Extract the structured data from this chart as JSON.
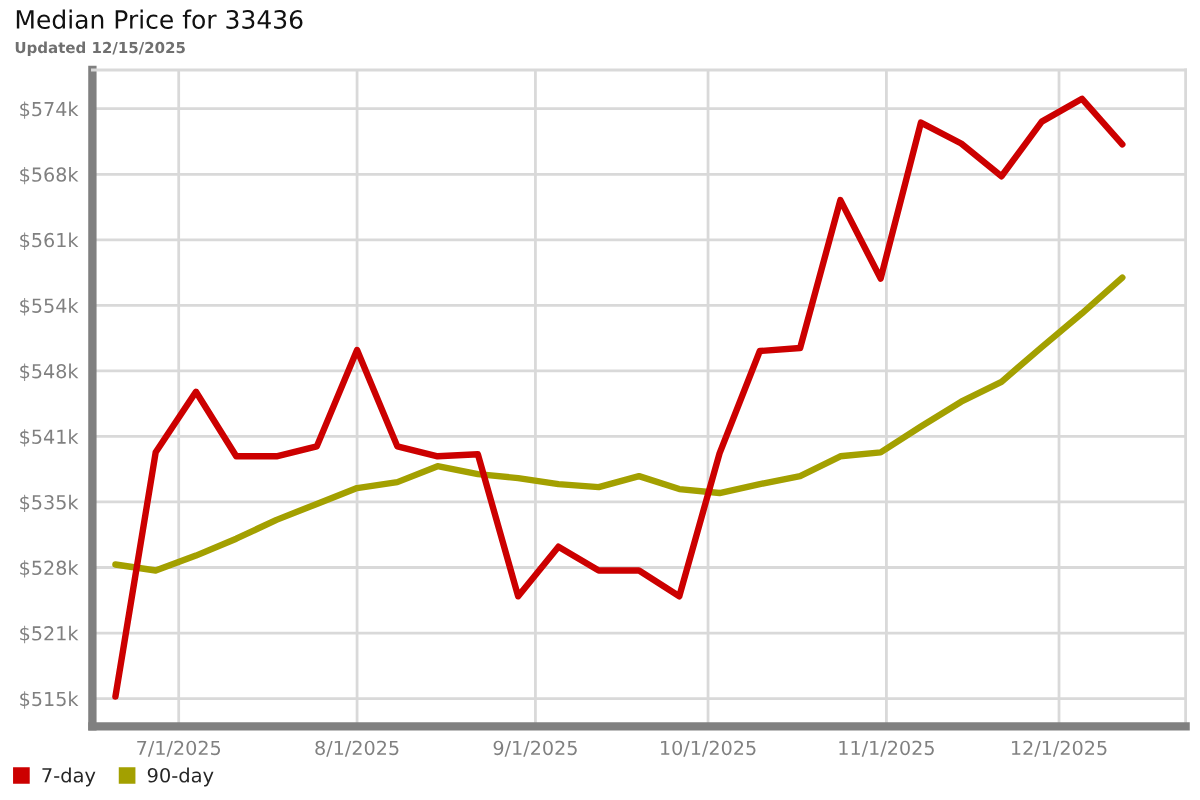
{
  "chart_data": {
    "type": "line",
    "title": "Median Price for 33436",
    "subtitle": "Updated 12/15/2025",
    "x": [
      "2025-06-20",
      "2025-06-27",
      "2025-07-04",
      "2025-07-11",
      "2025-07-18",
      "2025-07-25",
      "2025-08-01",
      "2025-08-08",
      "2025-08-15",
      "2025-08-22",
      "2025-08-29",
      "2025-09-05",
      "2025-09-12",
      "2025-09-19",
      "2025-09-26",
      "2025-10-03",
      "2025-10-10",
      "2025-10-17",
      "2025-10-24",
      "2025-10-31",
      "2025-11-07",
      "2025-11-14",
      "2025-11-21",
      "2025-11-28",
      "2025-12-05",
      "2025-12-12"
    ],
    "series": [
      {
        "name": "7-day",
        "color": "#cc0000",
        "values": [
          515.0,
          539.6,
          545.7,
          539.2,
          539.2,
          540.2,
          549.9,
          540.2,
          539.2,
          539.4,
          525.1,
          530.1,
          527.7,
          527.7,
          525.1,
          539.5,
          549.8,
          550.1,
          565.0,
          557.1,
          572.8,
          570.7,
          567.4,
          572.9,
          575.2,
          570.6
        ]
      },
      {
        "name": "90-day",
        "color": "#a3a000",
        "values": [
          528.3,
          527.7,
          529.2,
          530.9,
          532.8,
          534.4,
          536.0,
          536.6,
          538.2,
          537.4,
          537.0,
          536.4,
          536.1,
          537.2,
          535.9,
          535.5,
          536.4,
          537.2,
          539.2,
          539.6,
          542.2,
          544.7,
          546.7,
          550.2,
          553.6,
          557.2
        ]
      }
    ],
    "xlim": [
      "2025-06-16",
      "2025-12-23"
    ],
    "ylim": [
      512.0,
      578.1
    ],
    "xticks": [
      {
        "value": "2025-07-01",
        "label": "7/1/2025"
      },
      {
        "value": "2025-08-01",
        "label": "8/1/2025"
      },
      {
        "value": "2025-09-01",
        "label": "9/1/2025"
      },
      {
        "value": "2025-10-01",
        "label": "10/1/2025"
      },
      {
        "value": "2025-11-01",
        "label": "11/1/2025"
      },
      {
        "value": "2025-12-01",
        "label": "12/1/2025"
      }
    ],
    "yticks": [
      {
        "value": 514.8,
        "label": "$515k"
      },
      {
        "value": 521.4,
        "label": "$521k"
      },
      {
        "value": 528.0,
        "label": "$528k"
      },
      {
        "value": 534.6,
        "label": "$535k"
      },
      {
        "value": 541.2,
        "label": "$541k"
      },
      {
        "value": 547.8,
        "label": "$548k"
      },
      {
        "value": 554.4,
        "label": "$554k"
      },
      {
        "value": 561.0,
        "label": "$561k"
      },
      {
        "value": 567.6,
        "label": "$568k"
      },
      {
        "value": 574.2,
        "label": "$574k"
      }
    ],
    "grid": true,
    "legend": "bottom"
  }
}
